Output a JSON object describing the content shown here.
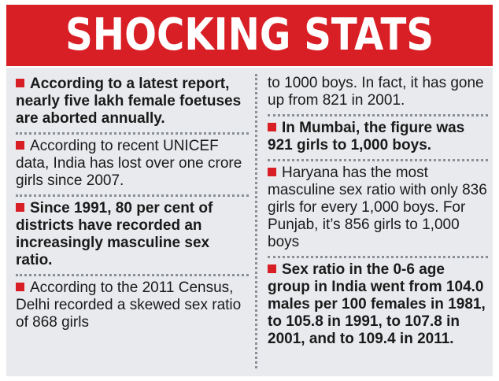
{
  "header": {
    "title": "SHOCKING STATS"
  },
  "colors": {
    "accent": "#d91f26",
    "panel_bg": "#e8eaed"
  },
  "left_column": [
    "According to a latest report, nearly five lakh female foetuses are aborted annually.",
    "According to recent UNICEF data, India has lost over one crore girls since 2007.",
    "Since 1991, 80 per cent of districts have recorded an increasingly masculine sex ratio.",
    "According to the 2011 Census, Delhi recorded a skewed sex ratio of 868 girls"
  ],
  "right_column": [
    "to 1000 boys. In fact, it has gone up from 821 in 2001.",
    "In Mumbai, the figure was 921 girls to 1,000 boys.",
    "Haryana has the most masculine sex ratio with only 836 girls for every 1,000 boys. For Punjab, it’s 856 girls to 1,000 boys",
    "Sex ratio in the 0-6 age group in India went from 104.0 males per 100 females in 1981, to 105.8 in 1991, to 107.8 in 2001, and to 109.4 in 2011."
  ]
}
